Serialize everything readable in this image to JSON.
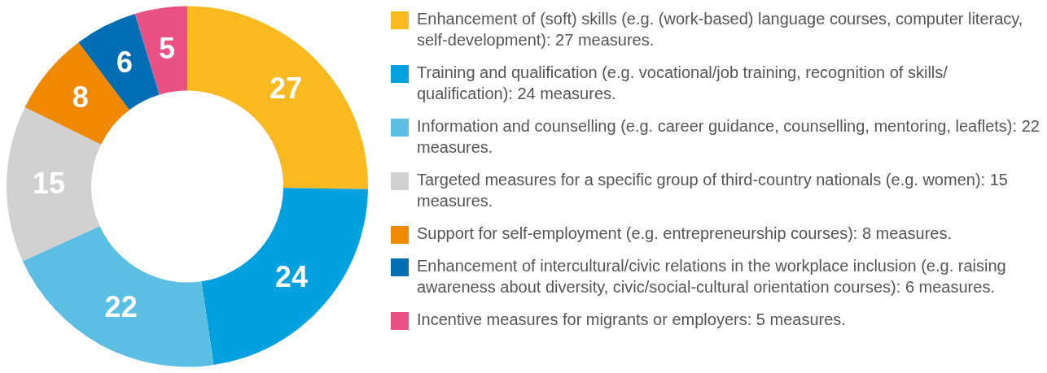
{
  "chart_data": {
    "type": "donut",
    "categories": [
      "Enhancement of (soft) skills (e.g. (work-based) language courses, computer literacy, self-development): 27 measures.",
      "Training and qualification (e.g. vocational/job training, recognition of skills/ qualification): 24 measures.",
      "Information and counselling (e.g. career guidance, counselling, mentoring, leaflets): 22 measures.",
      "Targeted measures for a specific group of third-country nationals (e.g. women): 15 measures.",
      "Support for self-employment (e.g. entrepreneurship courses): 8 measures.",
      "Enhancement of intercultural/civic relations in the workplace inclusion (e.g. raising awareness about diversity, civic/social-cultural orientation courses): 6 measures.",
      "Incentive measures for migrants or employers: 5 measures."
    ],
    "values": [
      27,
      24,
      22,
      15,
      8,
      6,
      5
    ],
    "colors": [
      "#fbb920",
      "#00a1de",
      "#5bbfe4",
      "#d0d1d0",
      "#f08800",
      "#006eb5",
      "#e95185"
    ],
    "data_labels": true,
    "legend": "right"
  }
}
